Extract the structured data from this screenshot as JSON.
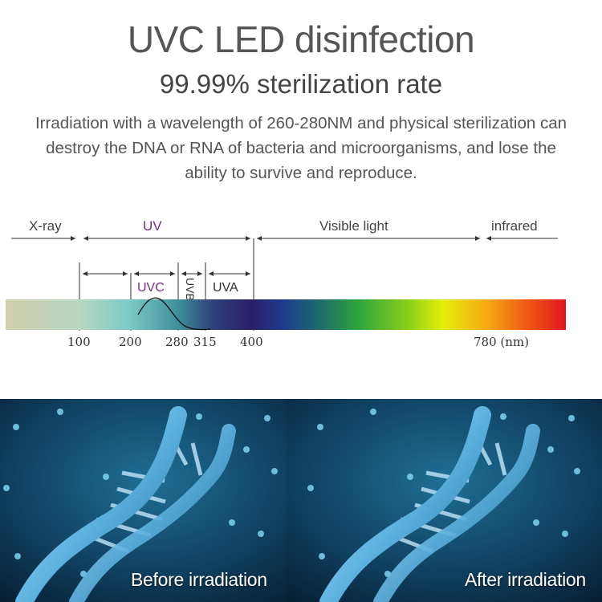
{
  "header": {
    "title": "UVC LED disinfection",
    "subtitle": "99.99% sterilization rate",
    "description": "Irradiation with a wavelength of 260-280NM and physical sterilization can destroy the DNA or RNA of bacteria and microorganisms, and lose the ability to survive and reproduce."
  },
  "spectrum": {
    "band_labels": {
      "xray": "X-ray",
      "uv": "UV",
      "visible": "Visible light",
      "infrared": "infrared"
    },
    "sub_labels": {
      "uvc": "UVC",
      "uvb": "UVB",
      "uva": "UVA"
    },
    "ticks": [
      "100",
      "200",
      "280",
      "315",
      "400",
      "780 (nm)"
    ],
    "colors": {
      "uv_label": "#7a2a8f",
      "uvc_label": "#7a2a8f"
    }
  },
  "panels": {
    "before_caption": "Before irradiation",
    "after_caption": "After irradiation"
  }
}
